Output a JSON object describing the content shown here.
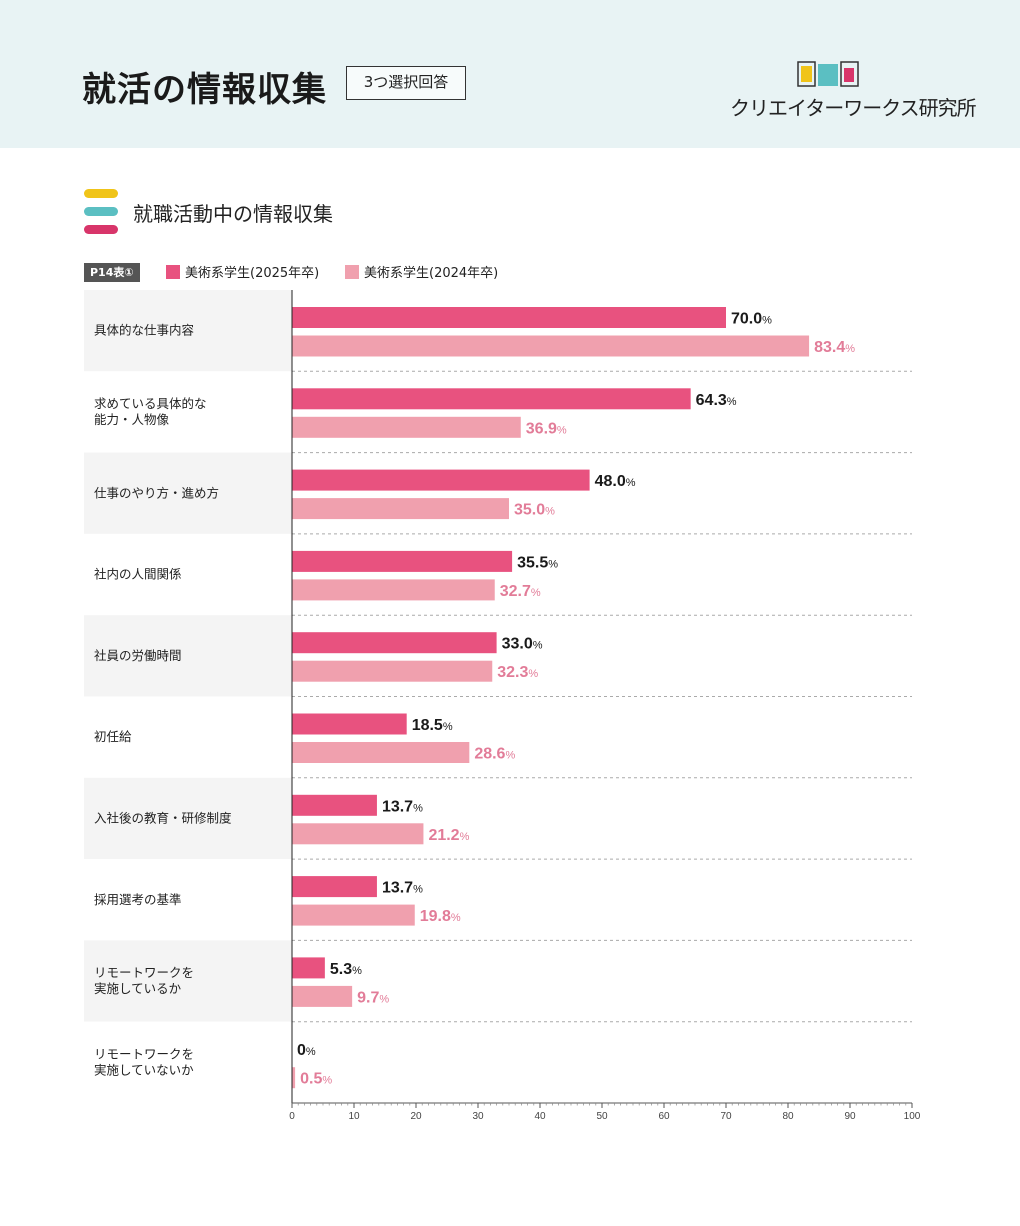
{
  "header": {
    "title": "就活の情報収集",
    "badge": "3つ選択回答",
    "logo_mark": "CWL",
    "logo_text": "クリエイターワークス研究所"
  },
  "section": {
    "title": "就職活動中の情報収集",
    "table_tag": "P14表①"
  },
  "colors": {
    "header_bg": "#e8f3f4",
    "series_2025": "#e8527f",
    "series_2024": "#f0a0ae",
    "label_2025": "#1a1a1a",
    "label_2024": "#e27c98",
    "deco_yellow": "#f0c419",
    "deco_teal": "#5bbfc2",
    "deco_pink": "#d8356a"
  },
  "chart_data": {
    "type": "bar",
    "orientation": "horizontal",
    "categories": [
      [
        "具体的な仕事内容"
      ],
      [
        "求めている具体的な",
        "能力・人物像"
      ],
      [
        "仕事のやり方・進め方"
      ],
      [
        "社内の人間関係"
      ],
      [
        "社員の労働時間"
      ],
      [
        "初任給"
      ],
      [
        "入社後の教育・研修制度"
      ],
      [
        "採用選考の基準"
      ],
      [
        "リモートワークを",
        "実施しているか"
      ],
      [
        "リモートワークを",
        "実施していないか"
      ]
    ],
    "series": [
      {
        "name": "美術系学生(2025年卒)",
        "values": [
          70.0,
          64.3,
          48.0,
          35.5,
          33.0,
          18.5,
          13.7,
          13.7,
          5.3,
          0
        ],
        "labels": [
          "70.0",
          "64.3",
          "48.0",
          "35.5",
          "33.0",
          "18.5",
          "13.7",
          "13.7",
          "5.3",
          "0"
        ]
      },
      {
        "name": "美術系学生(2024年卒)",
        "values": [
          83.4,
          36.9,
          35.0,
          32.7,
          32.3,
          28.6,
          21.2,
          19.8,
          9.7,
          0.5
        ],
        "labels": [
          "83.4",
          "36.9",
          "35.0",
          "32.7",
          "32.3",
          "28.6",
          "21.2",
          "19.8",
          "9.7",
          "0.5"
        ]
      }
    ],
    "unit": "%",
    "xlim": [
      0,
      100
    ],
    "xticks": [
      "0",
      "10",
      "20",
      "30",
      "40",
      "50",
      "60",
      "70",
      "80",
      "90",
      "100"
    ],
    "legend_position": "top-left"
  }
}
